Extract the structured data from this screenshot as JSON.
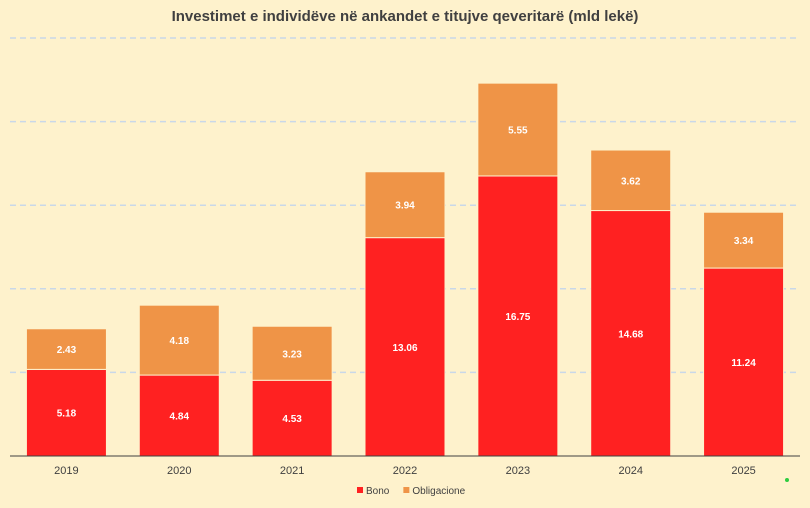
{
  "chart_data": {
    "type": "bar",
    "stacked": true,
    "title": "Investimet e individëve në ankandet e titujve qeveritarë (mld lekë)",
    "categories": [
      "2019",
      "2020",
      "2021",
      "2022",
      "2023",
      "2024",
      "2025"
    ],
    "series": [
      {
        "name": "Bono",
        "color": "#FF2121",
        "values": [
          5.18,
          4.84,
          4.53,
          13.06,
          16.75,
          14.68,
          11.24
        ]
      },
      {
        "name": "Obligacione",
        "color": "#EF9447",
        "values": [
          2.43,
          4.18,
          3.23,
          3.94,
          5.55,
          3.62,
          3.34
        ]
      }
    ],
    "ylim": [
      0,
      25
    ],
    "grid": true,
    "grid_style": "dashed",
    "legend_position": "bottom"
  }
}
